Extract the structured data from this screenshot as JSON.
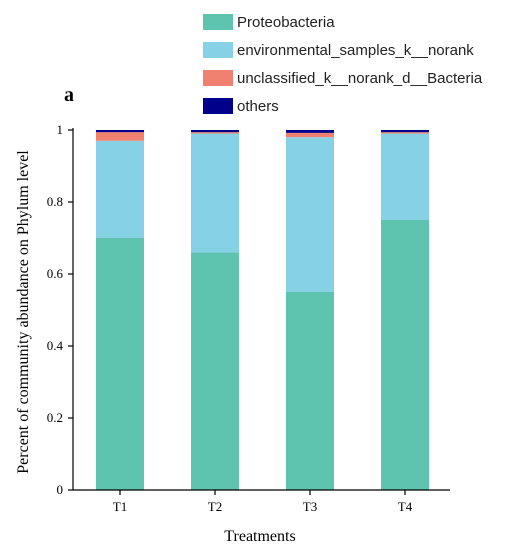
{
  "panel_label": "a",
  "chart_data": {
    "type": "bar",
    "stacked": true,
    "categories": [
      "T1",
      "T2",
      "T3",
      "T4"
    ],
    "series": [
      {
        "name": "Proteobacteria",
        "color": "#5ec4b0",
        "values": [
          0.7,
          0.66,
          0.55,
          0.75
        ]
      },
      {
        "name": "environmental_samples_k__norank",
        "color": "#86d1e5",
        "values": [
          0.27,
          0.33,
          0.43,
          0.24
        ]
      },
      {
        "name": "unclassified_k__norank_d__Bacteria",
        "color": "#f08070",
        "values": [
          0.024,
          0.004,
          0.012,
          0.004
        ]
      },
      {
        "name": "others",
        "color": "#00008b",
        "values": [
          0.006,
          0.006,
          0.008,
          0.006
        ]
      }
    ],
    "xlabel": "Treatments",
    "ylabel": "Percent of community abundance on Phylum level",
    "ylim": [
      0,
      1
    ],
    "yticks": [
      0,
      0.2,
      0.4,
      0.6,
      0.8,
      1
    ],
    "ytick_labels": [
      "0",
      "0.2",
      "0.4",
      "0.6",
      "0.8",
      "1"
    ],
    "grid": false,
    "legend_position": "top"
  }
}
